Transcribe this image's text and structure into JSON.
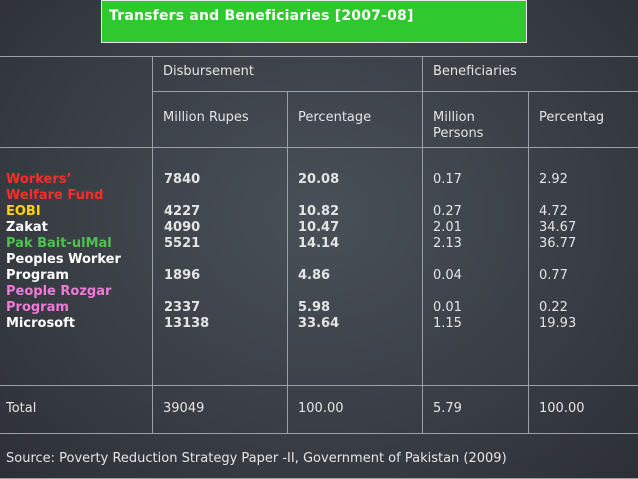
{
  "title": "Transfers and Beneficiaries [2007-08]",
  "header": {
    "disbursement": "Disbursement",
    "beneficiaries": "Beneficiaries",
    "million_rupes": "Million Rupes",
    "percentage": "Percentage",
    "million_persons_1": "Million",
    "million_persons_2": "Persons",
    "percentag": "Percentag"
  },
  "programs": [
    {
      "label_lines": [
        "Workers’",
        "Welfare Fund"
      ],
      "color": "#ff2a2a",
      "rupes": "7840",
      "pct": "20.08",
      "persons": "0.17",
      "bpct": "2.92"
    },
    {
      "label_lines": [
        "EOBI"
      ],
      "color": "#ffd400",
      "rupes": "4227",
      "pct": "10.82",
      "persons": "0.27",
      "bpct": "4.72"
    },
    {
      "label_lines": [
        "Zakat"
      ],
      "color": "#ffffff",
      "rupes": "4090",
      "pct": "10.47",
      "persons": "2.01",
      "bpct": "34.67"
    },
    {
      "label_lines": [
        "Pak Bait-ulMal"
      ],
      "color": "#4ec24e",
      "rupes": "5521",
      "pct": "14.14",
      "persons": "2.13",
      "bpct": "36.77"
    },
    {
      "label_lines": [
        "Peoples Worker",
        "Program"
      ],
      "color": "#ffffff",
      "rupes": "1896",
      "pct": "4.86",
      "persons": "0.04",
      "bpct": "0.77"
    },
    {
      "label_lines": [
        "People Rozgar",
        "Program"
      ],
      "color": "#f07ad6",
      "rupes": "2337",
      "pct": "5.98",
      "persons": "0.01",
      "bpct": "0.22"
    },
    {
      "label_lines": [
        "Microsoft"
      ],
      "color": "#ffffff",
      "rupes": "13138",
      "pct": "33.64",
      "persons": "1.15",
      "bpct": "19.93"
    }
  ],
  "total": {
    "label": "Total",
    "rupes": "39049",
    "pct": "100.00",
    "persons": "5.79",
    "bpct": "100.00"
  },
  "source": "Source: Poverty Reduction Strategy Paper -II, Government of Pakistan (2009)"
}
